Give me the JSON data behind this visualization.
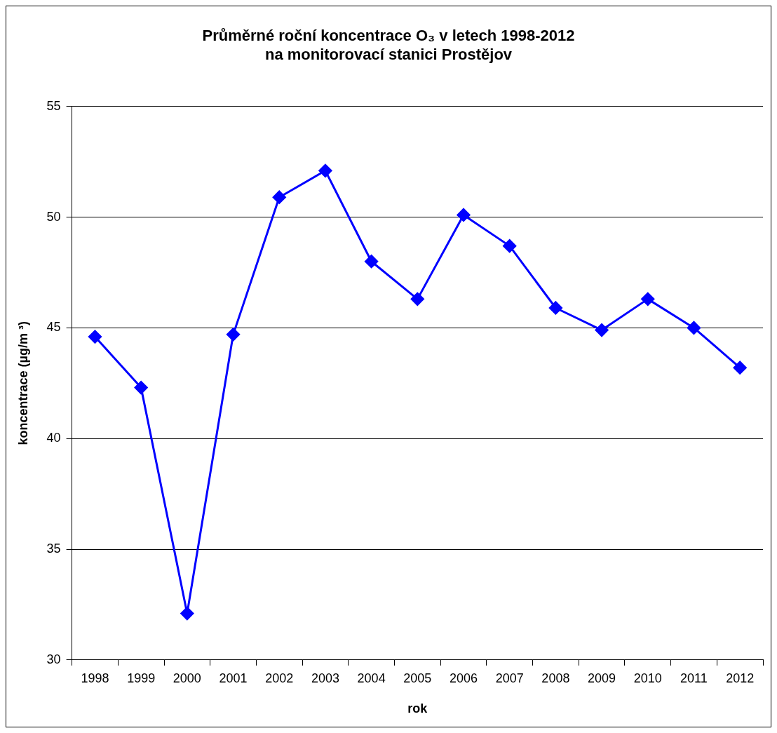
{
  "chart_data": {
    "type": "line",
    "title": "Průměrné roční koncentrace O₃ v letech 1998-2012\nna monitorovací stanici Prostějov",
    "xlabel": "rok",
    "ylabel": "koncentrace (µg/m ³)",
    "categories": [
      "1998",
      "1999",
      "2000",
      "2001",
      "2002",
      "2003",
      "2004",
      "2005",
      "2006",
      "2007",
      "2008",
      "2009",
      "2010",
      "2011",
      "2012"
    ],
    "series": [
      {
        "color": "#0000ff",
        "values": [
          44.6,
          42.3,
          32.1,
          44.7,
          50.9,
          52.1,
          48.0,
          46.3,
          50.1,
          48.7,
          45.9,
          44.9,
          46.3,
          45.0,
          43.2
        ]
      }
    ],
    "ylim": [
      30,
      55
    ],
    "yticks": [
      30,
      35,
      40,
      45,
      50,
      55
    ],
    "grid": "y",
    "legend": false,
    "marker": "diamond",
    "line_style": "solid"
  }
}
